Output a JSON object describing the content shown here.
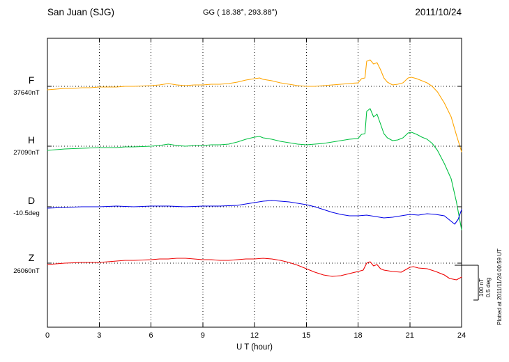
{
  "header": {
    "station": "San Juan (SJG)",
    "coordinates": "GG ( 18.38°, 293.88°)",
    "date": "2011/10/24"
  },
  "footer": {
    "plotted_at": "Plotted at 2011/11/24 00:59 UT"
  },
  "chart_data": {
    "type": "line",
    "title": "San Juan (SJG) magnetogram 2011/10/24",
    "xlabel": "U T (hour)",
    "xlim": [
      0,
      24
    ],
    "x_ticks": [
      0,
      3,
      6,
      9,
      12,
      15,
      18,
      21,
      24
    ],
    "x_tick_labels": [
      "0",
      "3",
      "6",
      "9",
      "12",
      "15",
      "18",
      "21",
      "24"
    ],
    "grid": "dotted vertical at 3h intervals, dotted horizontal at each channel baseline",
    "scale_bar": {
      "nT_label": "100 nT",
      "deg_label": "0.5 deg",
      "nT": 100,
      "deg": 0.5
    },
    "series": [
      {
        "name": "F",
        "unit": "nT",
        "baseline": 37640,
        "baseline_label": "37640nT",
        "color": "#FFA500",
        "points": [
          [
            0,
            37630
          ],
          [
            0.5,
            37632
          ],
          [
            1,
            37634
          ],
          [
            1.5,
            37634
          ],
          [
            2,
            37636
          ],
          [
            2.5,
            37636
          ],
          [
            3,
            37638
          ],
          [
            4,
            37638
          ],
          [
            4.5,
            37640
          ],
          [
            5,
            37640
          ],
          [
            6,
            37642
          ],
          [
            6.5,
            37644
          ],
          [
            7,
            37648
          ],
          [
            7.5,
            37644
          ],
          [
            8,
            37642
          ],
          [
            8.5,
            37644
          ],
          [
            9,
            37644
          ],
          [
            9.5,
            37646
          ],
          [
            10,
            37646
          ],
          [
            10.5,
            37648
          ],
          [
            11,
            37652
          ],
          [
            11.5,
            37658
          ],
          [
            12,
            37662
          ],
          [
            12.3,
            37664
          ],
          [
            12.5,
            37660
          ],
          [
            13,
            37656
          ],
          [
            13.5,
            37650
          ],
          [
            14,
            37646
          ],
          [
            14.5,
            37642
          ],
          [
            15,
            37640
          ],
          [
            15.5,
            37640
          ],
          [
            16,
            37642
          ],
          [
            16.5,
            37644
          ],
          [
            17,
            37646
          ],
          [
            17.5,
            37648
          ],
          [
            18,
            37650
          ],
          [
            18.2,
            37662
          ],
          [
            18.4,
            37664
          ],
          [
            18.5,
            37712
          ],
          [
            18.7,
            37716
          ],
          [
            18.9,
            37704
          ],
          [
            19.1,
            37708
          ],
          [
            19.3,
            37688
          ],
          [
            19.5,
            37664
          ],
          [
            19.7,
            37652
          ],
          [
            20,
            37644
          ],
          [
            20.3,
            37646
          ],
          [
            20.6,
            37650
          ],
          [
            20.9,
            37664
          ],
          [
            21.1,
            37666
          ],
          [
            21.4,
            37662
          ],
          [
            21.7,
            37656
          ],
          [
            22,
            37650
          ],
          [
            22.3,
            37640
          ],
          [
            22.6,
            37624
          ],
          [
            23,
            37592
          ],
          [
            23.4,
            37552
          ],
          [
            23.7,
            37500
          ],
          [
            24,
            37452
          ]
        ]
      },
      {
        "name": "H",
        "unit": "nT",
        "baseline": 27090,
        "baseline_label": "27090nT",
        "color": "#00C040",
        "points": [
          [
            0,
            27078
          ],
          [
            0.5,
            27080
          ],
          [
            1,
            27082
          ],
          [
            2,
            27084
          ],
          [
            3,
            27086
          ],
          [
            4,
            27086
          ],
          [
            4.5,
            27088
          ],
          [
            5,
            27088
          ],
          [
            6,
            27090
          ],
          [
            6.5,
            27092
          ],
          [
            7,
            27096
          ],
          [
            7.5,
            27092
          ],
          [
            8,
            27090
          ],
          [
            8.5,
            27092
          ],
          [
            9,
            27092
          ],
          [
            9.5,
            27094
          ],
          [
            10,
            27094
          ],
          [
            10.5,
            27096
          ],
          [
            11,
            27102
          ],
          [
            11.5,
            27110
          ],
          [
            12,
            27116
          ],
          [
            12.3,
            27118
          ],
          [
            12.5,
            27114
          ],
          [
            13,
            27110
          ],
          [
            13.5,
            27104
          ],
          [
            14,
            27100
          ],
          [
            14.5,
            27096
          ],
          [
            15,
            27094
          ],
          [
            15.5,
            27096
          ],
          [
            16,
            27098
          ],
          [
            16.5,
            27102
          ],
          [
            17,
            27106
          ],
          [
            17.5,
            27110
          ],
          [
            18,
            27112
          ],
          [
            18.2,
            27124
          ],
          [
            18.4,
            27126
          ],
          [
            18.5,
            27190
          ],
          [
            18.7,
            27198
          ],
          [
            18.9,
            27174
          ],
          [
            19.1,
            27182
          ],
          [
            19.3,
            27154
          ],
          [
            19.5,
            27126
          ],
          [
            19.7,
            27114
          ],
          [
            20,
            27106
          ],
          [
            20.3,
            27108
          ],
          [
            20.6,
            27114
          ],
          [
            20.9,
            27128
          ],
          [
            21.1,
            27130
          ],
          [
            21.4,
            27124
          ],
          [
            21.7,
            27116
          ],
          [
            22,
            27110
          ],
          [
            22.3,
            27098
          ],
          [
            22.6,
            27078
          ],
          [
            23,
            27040
          ],
          [
            23.4,
            26996
          ],
          [
            23.7,
            26930
          ],
          [
            24,
            26850
          ]
        ]
      },
      {
        "name": "D",
        "unit": "deg",
        "baseline": -10.5,
        "baseline_label": "-10.5deg",
        "color": "#0000E6",
        "points": [
          [
            0,
            -10.52
          ],
          [
            1,
            -10.51
          ],
          [
            2,
            -10.5
          ],
          [
            3,
            -10.5
          ],
          [
            4,
            -10.49
          ],
          [
            5,
            -10.5
          ],
          [
            6,
            -10.49
          ],
          [
            7,
            -10.49
          ],
          [
            8,
            -10.5
          ],
          [
            9,
            -10.49
          ],
          [
            10,
            -10.49
          ],
          [
            11,
            -10.48
          ],
          [
            11.5,
            -10.46
          ],
          [
            12,
            -10.44
          ],
          [
            12.5,
            -10.42
          ],
          [
            13,
            -10.41
          ],
          [
            13.5,
            -10.42
          ],
          [
            14,
            -10.43
          ],
          [
            14.5,
            -10.45
          ],
          [
            15,
            -10.47
          ],
          [
            15.5,
            -10.5
          ],
          [
            16,
            -10.54
          ],
          [
            16.5,
            -10.58
          ],
          [
            17,
            -10.61
          ],
          [
            17.5,
            -10.63
          ],
          [
            18,
            -10.63
          ],
          [
            18.5,
            -10.62
          ],
          [
            19,
            -10.64
          ],
          [
            19.5,
            -10.66
          ],
          [
            20,
            -10.65
          ],
          [
            20.5,
            -10.63
          ],
          [
            21,
            -10.61
          ],
          [
            21.5,
            -10.62
          ],
          [
            22,
            -10.6
          ],
          [
            22.5,
            -10.61
          ],
          [
            23,
            -10.63
          ],
          [
            23.3,
            -10.69
          ],
          [
            23.6,
            -10.75
          ],
          [
            23.8,
            -10.68
          ],
          [
            24,
            -10.54
          ]
        ]
      },
      {
        "name": "Z",
        "unit": "nT",
        "baseline": 26060,
        "baseline_label": "26060nT",
        "color": "#EE0000",
        "points": [
          [
            0,
            26056
          ],
          [
            0.5,
            26058
          ],
          [
            1,
            26060
          ],
          [
            2,
            26062
          ],
          [
            3,
            26062
          ],
          [
            3.5,
            26064
          ],
          [
            4,
            26066
          ],
          [
            4.5,
            26068
          ],
          [
            5,
            26068
          ],
          [
            6,
            26070
          ],
          [
            6.5,
            26072
          ],
          [
            7,
            26072
          ],
          [
            7.5,
            26074
          ],
          [
            8,
            26074
          ],
          [
            8.5,
            26072
          ],
          [
            9,
            26070
          ],
          [
            9.5,
            26070
          ],
          [
            10,
            26068
          ],
          [
            10.5,
            26068
          ],
          [
            11,
            26070
          ],
          [
            11.5,
            26072
          ],
          [
            12,
            26072
          ],
          [
            12.5,
            26074
          ],
          [
            13,
            26072
          ],
          [
            13.5,
            26068
          ],
          [
            14,
            26062
          ],
          [
            14.5,
            26054
          ],
          [
            15,
            26044
          ],
          [
            15.5,
            26034
          ],
          [
            16,
            26026
          ],
          [
            16.5,
            26022
          ],
          [
            17,
            26024
          ],
          [
            17.5,
            26030
          ],
          [
            18,
            26036
          ],
          [
            18.3,
            26040
          ],
          [
            18.5,
            26060
          ],
          [
            18.7,
            26064
          ],
          [
            18.9,
            26052
          ],
          [
            19.1,
            26056
          ],
          [
            19.3,
            26044
          ],
          [
            19.5,
            26040
          ],
          [
            20,
            26036
          ],
          [
            20.5,
            26034
          ],
          [
            21,
            26048
          ],
          [
            21.2,
            26050
          ],
          [
            21.5,
            26046
          ],
          [
            22,
            26044
          ],
          [
            22.5,
            26036
          ],
          [
            23,
            26026
          ],
          [
            23.3,
            26016
          ],
          [
            23.7,
            26012
          ],
          [
            24,
            26020
          ]
        ]
      }
    ]
  }
}
